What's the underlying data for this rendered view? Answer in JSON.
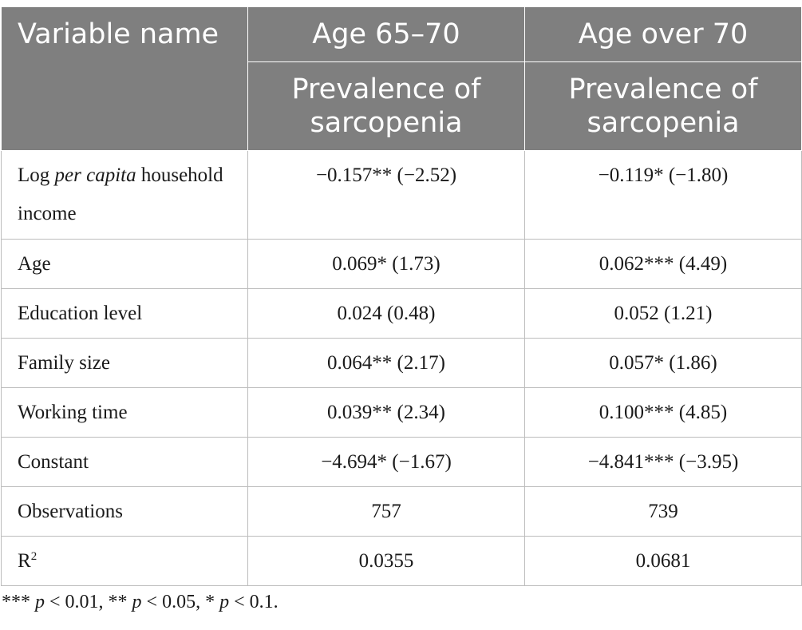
{
  "header": {
    "variable_name": "Variable name",
    "group1": "Age 65–70",
    "group2": "Age over 70",
    "sub1": "Prevalence of sarcopenia",
    "sub2": "Prevalence of sarcopenia"
  },
  "rows": [
    {
      "label_pre": "Log ",
      "label_italic": "per capita",
      "label_post": " household income",
      "v1": "−0.157** (−2.52)",
      "v2": "−0.119* (−1.80)"
    },
    {
      "label": "Age",
      "v1": "0.069* (1.73)",
      "v2": "0.062*** (4.49)"
    },
    {
      "label": "Education level",
      "v1": "0.024 (0.48)",
      "v2": "0.052 (1.21)"
    },
    {
      "label": "Family size",
      "v1": "0.064** (2.17)",
      "v2": "0.057* (1.86)"
    },
    {
      "label": "Working time",
      "v1": "0.039** (2.34)",
      "v2": "0.100*** (4.85)"
    },
    {
      "label": "Constant",
      "v1": "−4.694* (−1.67)",
      "v2": "−4.841*** (−3.95)"
    },
    {
      "label": "Observations",
      "v1": "757",
      "v2": "739"
    },
    {
      "label_base": "R",
      "label_sup": "2",
      "v1": "0.0355",
      "v2": "0.0681"
    }
  ],
  "note": {
    "stars1": "*** ",
    "p1": "p",
    "t1": " < 0.01, ** ",
    "p2": "p",
    "t2": " < 0.05, * ",
    "p3": "p",
    "t3": " < 0.1."
  }
}
